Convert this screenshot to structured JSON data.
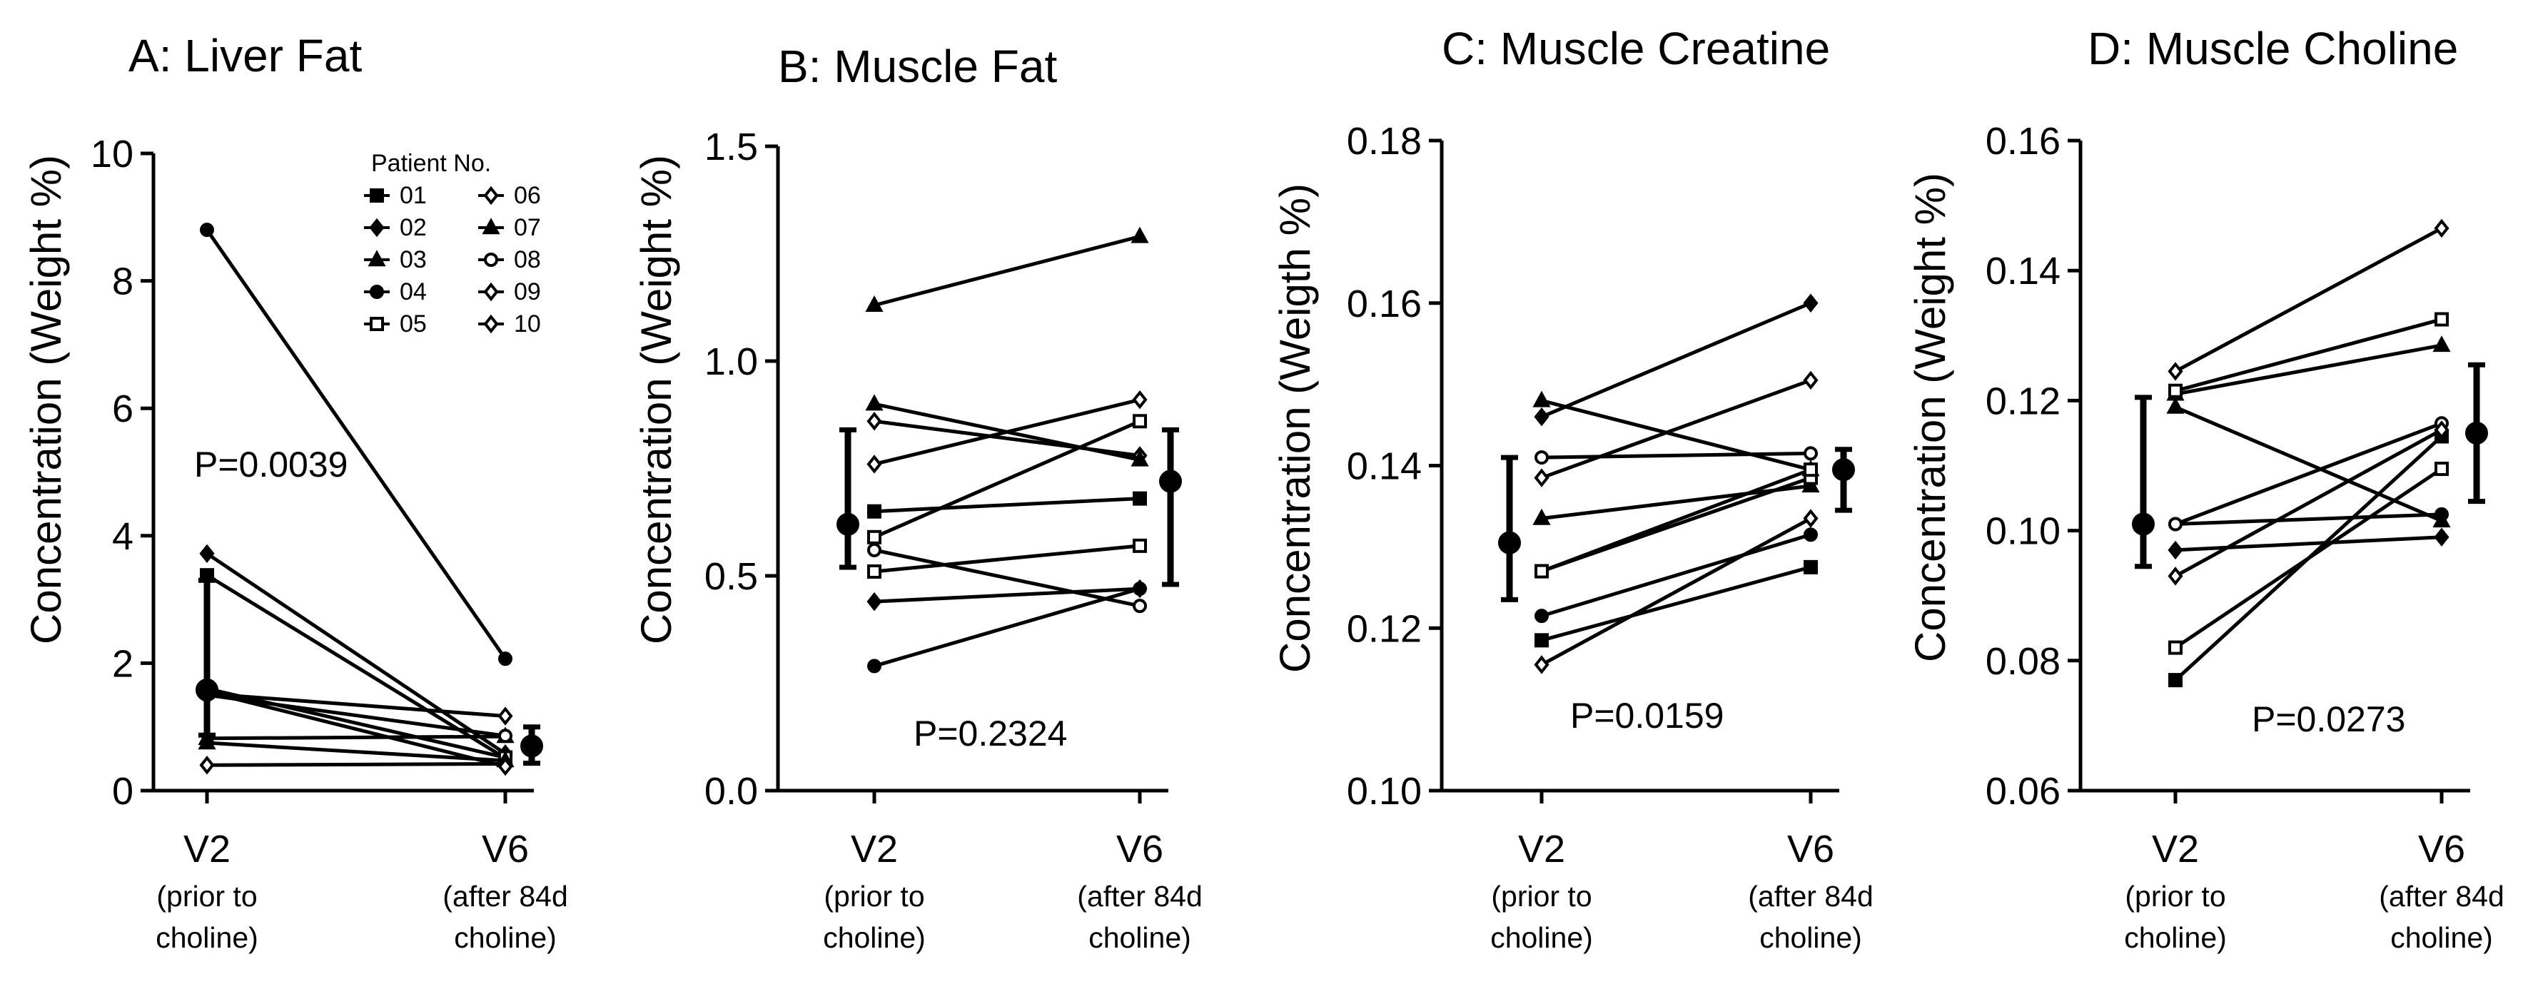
{
  "figure": {
    "background": "#ffffff",
    "ink": "#000000"
  },
  "chart_data": [
    {
      "type": "line",
      "id": "A",
      "title": "A: Liver Fat",
      "ylabel": "Concentration (Weight %)",
      "ylim": [
        0,
        10
      ],
      "yticks": [
        0,
        2,
        4,
        6,
        8,
        10
      ],
      "ytick_labels": [
        "0",
        "2",
        "4",
        "6",
        "8",
        "10"
      ],
      "categories": [
        "V2",
        "V6"
      ],
      "category_sublabels": [
        [
          "(prior to",
          "choline)"
        ],
        [
          "(after 84d",
          "choline)"
        ]
      ],
      "pvalue": "P=0.0039",
      "series": [
        {
          "name": "01",
          "marker": "square-filled",
          "values": [
            3.38,
            0.51
          ]
        },
        {
          "name": "02",
          "marker": "diamond-filled",
          "values": [
            3.72,
            0.58
          ]
        },
        {
          "name": "03",
          "marker": "triangle-filled",
          "values": [
            0.82,
            0.85
          ]
        },
        {
          "name": "04",
          "marker": "circle-filled",
          "values": [
            8.8,
            2.07
          ]
        },
        {
          "name": "05",
          "marker": "square-open",
          "values": [
            1.6,
            0.52
          ]
        },
        {
          "name": "06",
          "marker": "diamond-open",
          "values": [
            1.52,
            1.17
          ]
        },
        {
          "name": "07",
          "marker": "triangle-filled",
          "values": [
            0.75,
            0.47
          ]
        },
        {
          "name": "08",
          "marker": "circle-open",
          "values": [
            1.5,
            0.86
          ]
        },
        {
          "name": "09",
          "marker": "diamond-open",
          "values": [
            0.4,
            0.42
          ]
        },
        {
          "name": "10",
          "marker": "diamond-open",
          "values": [
            1.55,
            0.38
          ]
        }
      ],
      "summary": [
        {
          "category": "V2",
          "mean": 1.58,
          "low": 0.87,
          "high": 3.3
        },
        {
          "category": "V6",
          "mean": 0.7,
          "low": 0.43,
          "high": 1.0
        }
      ],
      "legend": {
        "title": "Patient No.",
        "placement": "top-right",
        "items": [
          {
            "label": "01",
            "marker": "square-filled"
          },
          {
            "label": "02",
            "marker": "diamond-filled"
          },
          {
            "label": "03",
            "marker": "triangle-filled"
          },
          {
            "label": "04",
            "marker": "circle-filled"
          },
          {
            "label": "05",
            "marker": "square-open"
          },
          {
            "label": "06",
            "marker": "diamond-open"
          },
          {
            "label": "07",
            "marker": "triangle-filled"
          },
          {
            "label": "08",
            "marker": "circle-open"
          },
          {
            "label": "09",
            "marker": "diamond-open"
          },
          {
            "label": "10",
            "marker": "diamond-open"
          }
        ]
      }
    },
    {
      "type": "line",
      "id": "B",
      "title": "B: Muscle Fat",
      "ylabel": "Concentration (Weight %)",
      "ylim": [
        0,
        1.5
      ],
      "yticks": [
        0,
        0.5,
        1.0,
        1.5
      ],
      "ytick_labels": [
        "0.0",
        "0.5",
        "1.0",
        "1.5"
      ],
      "categories": [
        "V2",
        "V6"
      ],
      "category_sublabels": [
        [
          "(prior to",
          "choline)"
        ],
        [
          "(after 84d",
          "choline)"
        ]
      ],
      "pvalue": "P=0.2324",
      "series": [
        {
          "name": "01",
          "marker": "square-filled",
          "values": [
            0.65,
            0.68
          ]
        },
        {
          "name": "02",
          "marker": "diamond-filled",
          "values": [
            0.44,
            0.47
          ]
        },
        {
          "name": "03",
          "marker": "triangle-filled",
          "values": [
            1.13,
            1.29
          ]
        },
        {
          "name": "04",
          "marker": "circle-filled",
          "values": [
            0.29,
            0.47
          ]
        },
        {
          "name": "05",
          "marker": "square-open",
          "values": [
            0.51,
            0.57
          ]
        },
        {
          "name": "06",
          "marker": "diamond-open",
          "values": [
            0.86,
            0.78
          ]
        },
        {
          "name": "07",
          "marker": "triangle-filled",
          "values": [
            0.9,
            0.77
          ]
        },
        {
          "name": "08",
          "marker": "circle-open",
          "values": [
            0.56,
            0.43
          ]
        },
        {
          "name": "09",
          "marker": "diamond-open",
          "values": [
            0.76,
            0.91
          ]
        },
        {
          "name": "10",
          "marker": "square-open",
          "values": [
            0.59,
            0.86
          ]
        }
      ],
      "summary": [
        {
          "category": "V2",
          "mean": 0.62,
          "low": 0.52,
          "high": 0.84
        },
        {
          "category": "V6",
          "mean": 0.72,
          "low": 0.48,
          "high": 0.84
        }
      ]
    },
    {
      "type": "line",
      "id": "C",
      "title": "C: Muscle Creatine",
      "ylabel": "Concentration (Weigth %)",
      "ylim": [
        0.1,
        0.18
      ],
      "yticks": [
        0.1,
        0.12,
        0.14,
        0.16,
        0.18
      ],
      "ytick_labels": [
        "0.10",
        "0.12",
        "0.14",
        "0.16",
        "0.18"
      ],
      "categories": [
        "V2",
        "V6"
      ],
      "category_sublabels": [
        [
          "(prior to",
          "choline)"
        ],
        [
          "(after 84d",
          "choline)"
        ]
      ],
      "pvalue": "P=0.0159",
      "series": [
        {
          "name": "01",
          "marker": "square-filled",
          "values": [
            0.1185,
            0.1275
          ]
        },
        {
          "name": "02",
          "marker": "diamond-filled",
          "values": [
            0.146,
            0.16
          ]
        },
        {
          "name": "03",
          "marker": "triangle-filled",
          "values": [
            0.1335,
            0.1375
          ]
        },
        {
          "name": "04",
          "marker": "circle-filled",
          "values": [
            0.1215,
            0.1315
          ]
        },
        {
          "name": "05",
          "marker": "square-open",
          "values": [
            0.127,
            0.1385
          ]
        },
        {
          "name": "06",
          "marker": "diamond-open",
          "values": [
            0.1385,
            0.1505
          ]
        },
        {
          "name": "07",
          "marker": "triangle-filled",
          "values": [
            0.148,
            0.1395
          ]
        },
        {
          "name": "08",
          "marker": "circle-open",
          "values": [
            0.141,
            0.1415
          ]
        },
        {
          "name": "09",
          "marker": "diamond-open",
          "values": [
            0.1155,
            0.1335
          ]
        },
        {
          "name": "10",
          "marker": "square-open",
          "values": [
            0.127,
            0.1395
          ]
        }
      ],
      "summary": [
        {
          "category": "V2",
          "mean": 0.1305,
          "low": 0.1235,
          "high": 0.141
        },
        {
          "category": "V6",
          "mean": 0.1395,
          "low": 0.1345,
          "high": 0.142
        }
      ]
    },
    {
      "type": "line",
      "id": "D",
      "title": "D: Muscle Choline",
      "ylabel": "Concentration (Weight %)",
      "ylim": [
        0.06,
        0.16
      ],
      "yticks": [
        0.06,
        0.08,
        0.1,
        0.12,
        0.14,
        0.16
      ],
      "ytick_labels": [
        "0.06",
        "0.08",
        "0.10",
        "0.12",
        "0.14",
        "0.16"
      ],
      "categories": [
        "V2",
        "V6"
      ],
      "category_sublabels": [
        [
          "(prior to",
          "choline)"
        ],
        [
          "(after 84d",
          "choline)"
        ]
      ],
      "pvalue": "P=0.0273",
      "series": [
        {
          "name": "01",
          "marker": "square-filled",
          "values": [
            0.077,
            0.1145
          ]
        },
        {
          "name": "02",
          "marker": "diamond-filled",
          "values": [
            0.097,
            0.099
          ]
        },
        {
          "name": "03",
          "marker": "triangle-filled",
          "values": [
            0.121,
            0.1285
          ]
        },
        {
          "name": "04",
          "marker": "circle-filled",
          "values": [
            0.101,
            0.1025
          ]
        },
        {
          "name": "05",
          "marker": "square-open",
          "values": [
            0.082,
            0.1095
          ]
        },
        {
          "name": "06",
          "marker": "diamond-open",
          "values": [
            0.1245,
            0.1465
          ]
        },
        {
          "name": "07",
          "marker": "triangle-filled",
          "values": [
            0.119,
            0.1015
          ]
        },
        {
          "name": "08",
          "marker": "circle-open",
          "values": [
            0.101,
            0.1165
          ]
        },
        {
          "name": "09",
          "marker": "diamond-open",
          "values": [
            0.093,
            0.1155
          ]
        },
        {
          "name": "10",
          "marker": "square-open",
          "values": [
            0.1215,
            0.1325
          ]
        }
      ],
      "summary": [
        {
          "category": "V2",
          "mean": 0.101,
          "low": 0.0945,
          "high": 0.1205
        },
        {
          "category": "V6",
          "mean": 0.115,
          "low": 0.1045,
          "high": 0.1255
        }
      ]
    }
  ]
}
